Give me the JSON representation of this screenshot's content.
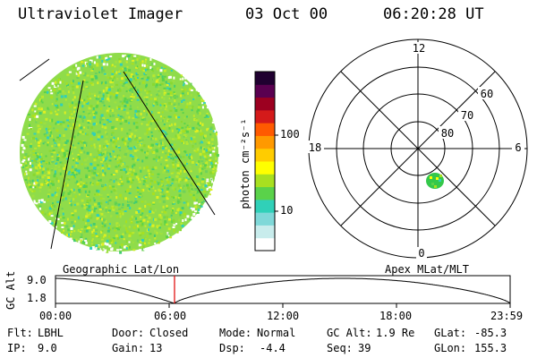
{
  "header": {
    "instrument": "Ultraviolet Imager",
    "date": "03 Oct 00",
    "time": "06:20:28 UT"
  },
  "colorbar": {
    "unit_label": "photon cm⁻²s⁻¹",
    "tick_labels": [
      "100",
      "10"
    ],
    "colors": [
      "#ffffff",
      "#c8ecec",
      "#7fd8d8",
      "#30d0b8",
      "#5ad24a",
      "#a8e020",
      "#ffff00",
      "#ffcc00",
      "#ff9900",
      "#ff5a00",
      "#d41a1a",
      "#9c0020",
      "#5a0050",
      "#200030"
    ]
  },
  "polar_plot": {
    "mlt_labels": [
      "12",
      "18",
      "6",
      "0"
    ],
    "lat_labels": [
      "60",
      "70",
      "80"
    ],
    "spot_color": "#34c84a"
  },
  "orbit_panel": {
    "left_title": "Geographic Lat/Lon",
    "right_title": "Apex MLat/MLT",
    "y_axis_label": "GC Alt",
    "y_ticks": [
      "9.0",
      "1.8"
    ],
    "x_ticks": [
      "00:00",
      "06:00",
      "12:00",
      "18:00",
      "23:59"
    ],
    "marker_color": "#e00000",
    "marker_time": "06:20"
  },
  "info": {
    "flt_label": "Flt:",
    "flt_value": "LBHL",
    "ip_label": "IP:",
    "ip_value": "9.0",
    "door_label": "Door:",
    "door_value": "Closed",
    "gain_label": "Gain:",
    "gain_value": "13",
    "mode_label": "Mode:",
    "mode_value": "Normal",
    "dsp_label": "Dsp:",
    "dsp_value": "-4.4",
    "gcalt_label": "GC Alt:",
    "gcalt_value": "1.9 Re",
    "seq_label": "Seq:",
    "seq_value": "39",
    "glat_label": "GLat:",
    "glat_value": "-85.3",
    "glon_label": "GLon:",
    "glon_value": "155.3"
  }
}
